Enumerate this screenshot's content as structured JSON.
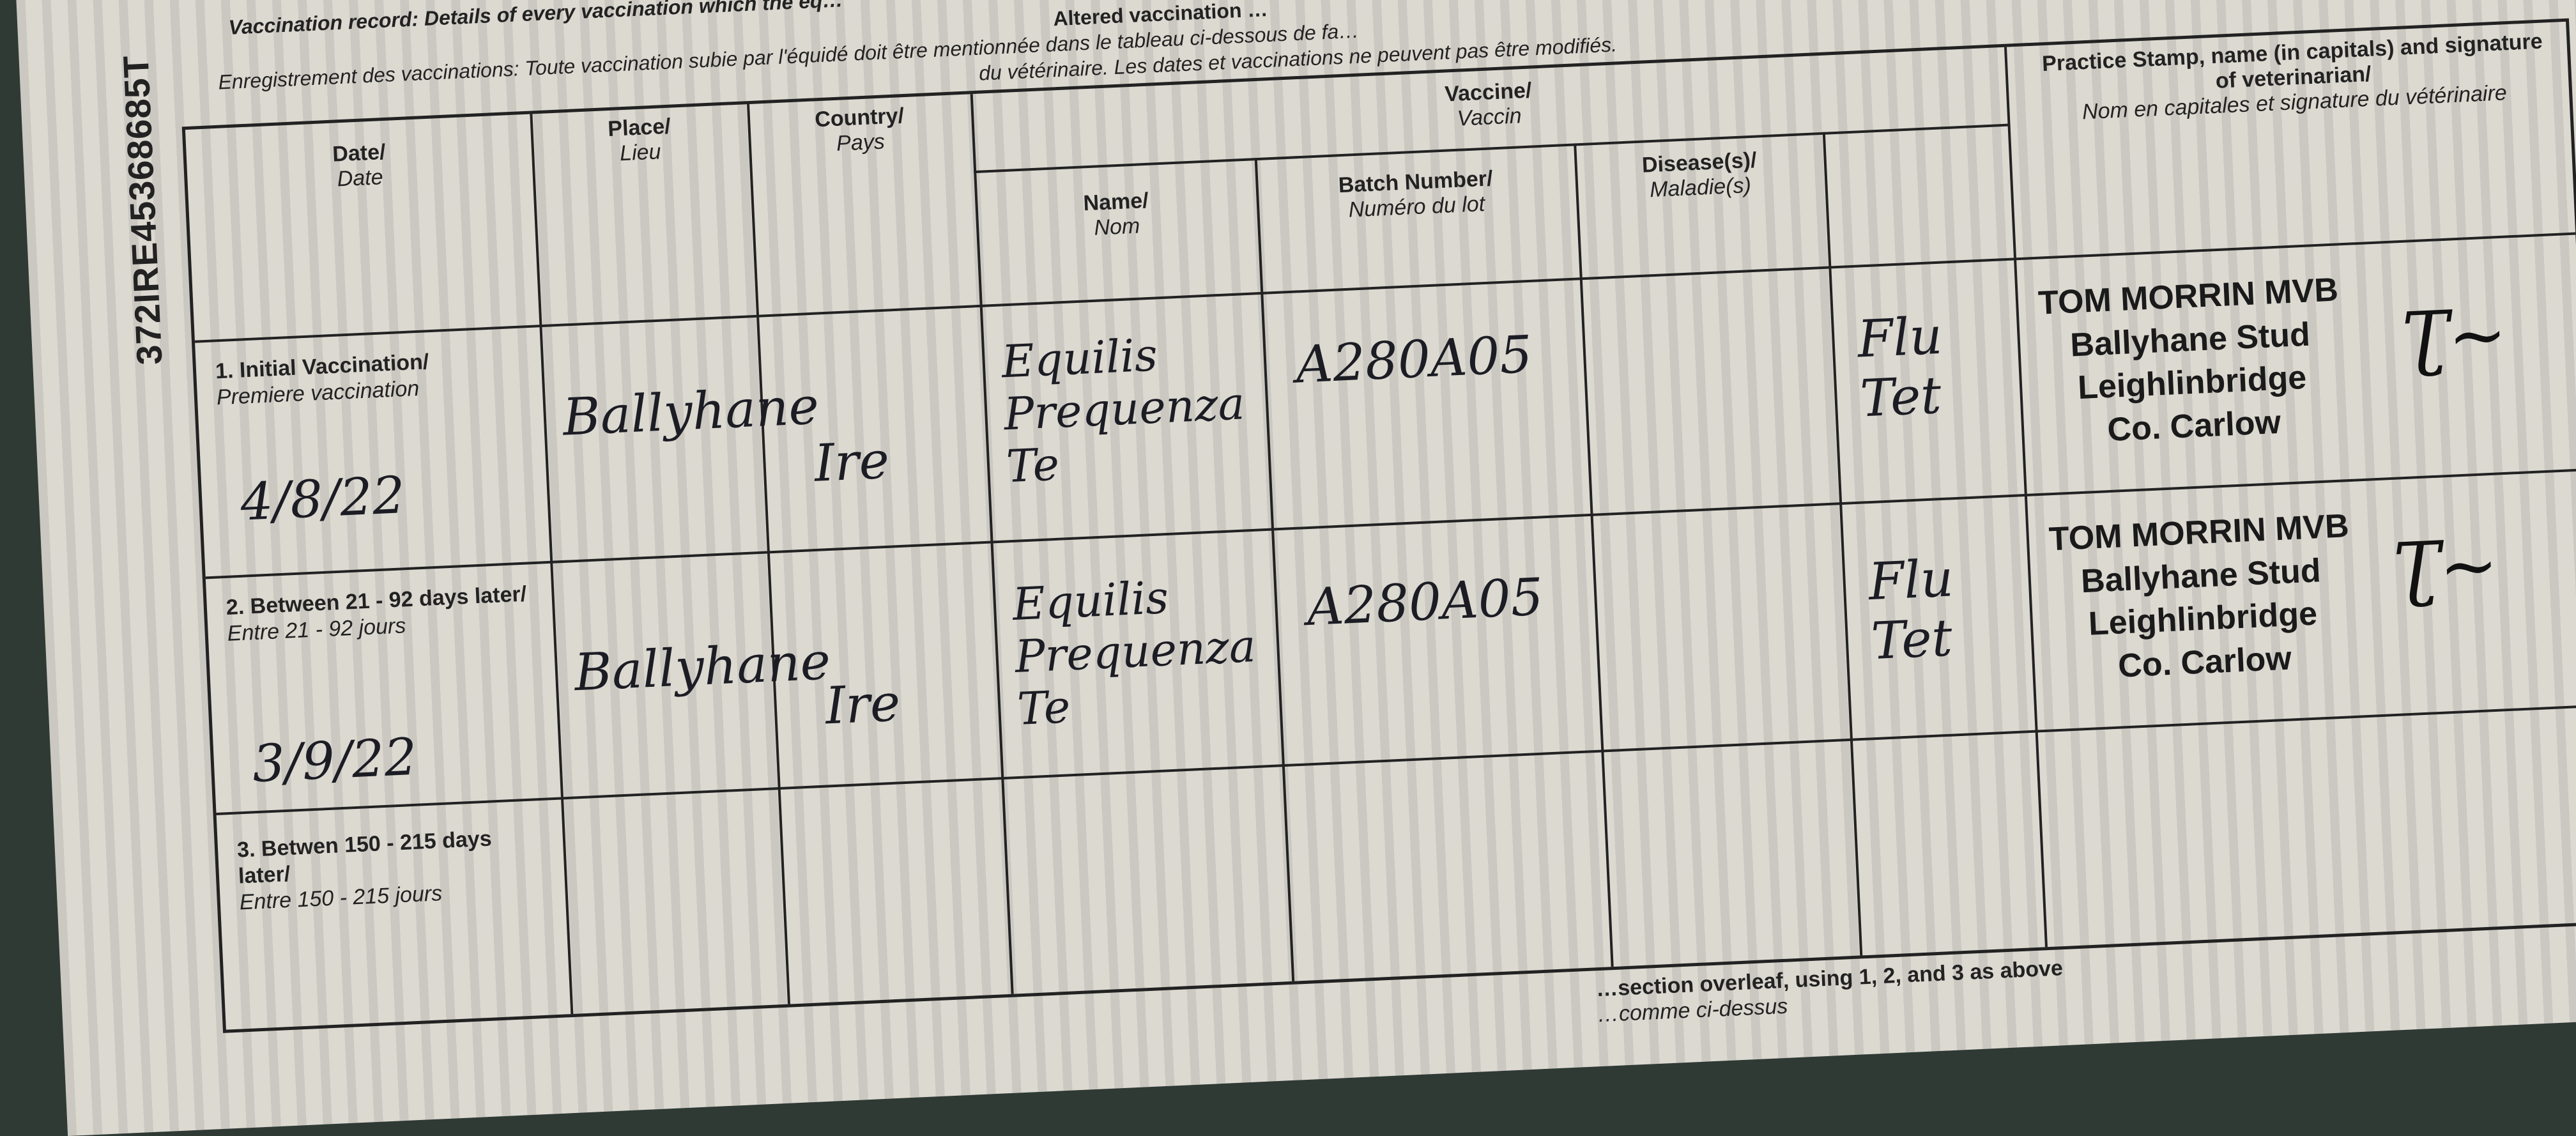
{
  "document": {
    "serial_number": "372IRE45368685T",
    "header": {
      "en_line": "Vaccination record: Details of every vaccination which the eq…",
      "altered": "Altered vaccination …",
      "fr_line1": "Enregistrement des vaccinations: Toute vaccination subie par l'équidé doit être mentionnée dans le tableau ci-dessous de fa…",
      "fr_line2": "du vétérinaire. Les dates et vaccinations ne peuvent pas être modifiés."
    },
    "columns": {
      "date": {
        "en": "Date/",
        "fr": "Date"
      },
      "place": {
        "en": "Place/",
        "fr": "Lieu"
      },
      "country": {
        "en": "Country/",
        "fr": "Pays"
      },
      "vaccine": {
        "en": "Vaccine/",
        "fr": "Vaccin"
      },
      "name": {
        "en": "Name/",
        "fr": "Nom"
      },
      "batch": {
        "en": "Batch Number/",
        "fr": "Numéro du lot"
      },
      "disease": {
        "en": "Disease(s)/",
        "fr": "Maladie(s)"
      },
      "stamp": {
        "en": "Practice Stamp, name (in capitals) and signature of veterinarian/",
        "fr": "Nom en capitales et signature du vétérinaire"
      }
    },
    "rows": [
      {
        "label_en": "1. Initial Vaccination/",
        "label_fr": "Premiere vaccination",
        "date": "4/8/22",
        "place": "Ballyhane",
        "country": "Ire",
        "name": "Equilis Prequenza Te",
        "batch": "A280A05",
        "disease": "Flu Tet",
        "stamp": {
          "name": "TOM MORRIN MVB",
          "line2": "Ballyhane Stud",
          "line3": "Leighlinbridge",
          "line4": "Co. Carlow"
        }
      },
      {
        "label_en": "2. Between 21 - 92 days later/",
        "label_fr": "Entre 21 - 92 jours",
        "date": "3/9/22",
        "place": "Ballyhane",
        "country": "Ire",
        "name": "Equilis Prequenza Te",
        "batch": "A280A05",
        "disease": "Flu Tet",
        "stamp": {
          "name": "TOM MORRIN MVB",
          "line2": "Ballyhane Stud",
          "line3": "Leighlinbridge",
          "line4": "Co. Carlow"
        }
      },
      {
        "label_en": "3. Betwen 150 - 215 days later/",
        "label_fr": "Entre 150 - 215 jours"
      }
    ],
    "footer": {
      "line1": "…section overleaf, using 1, 2, and 3 as above",
      "line2": "…comme ci-dessus"
    }
  }
}
